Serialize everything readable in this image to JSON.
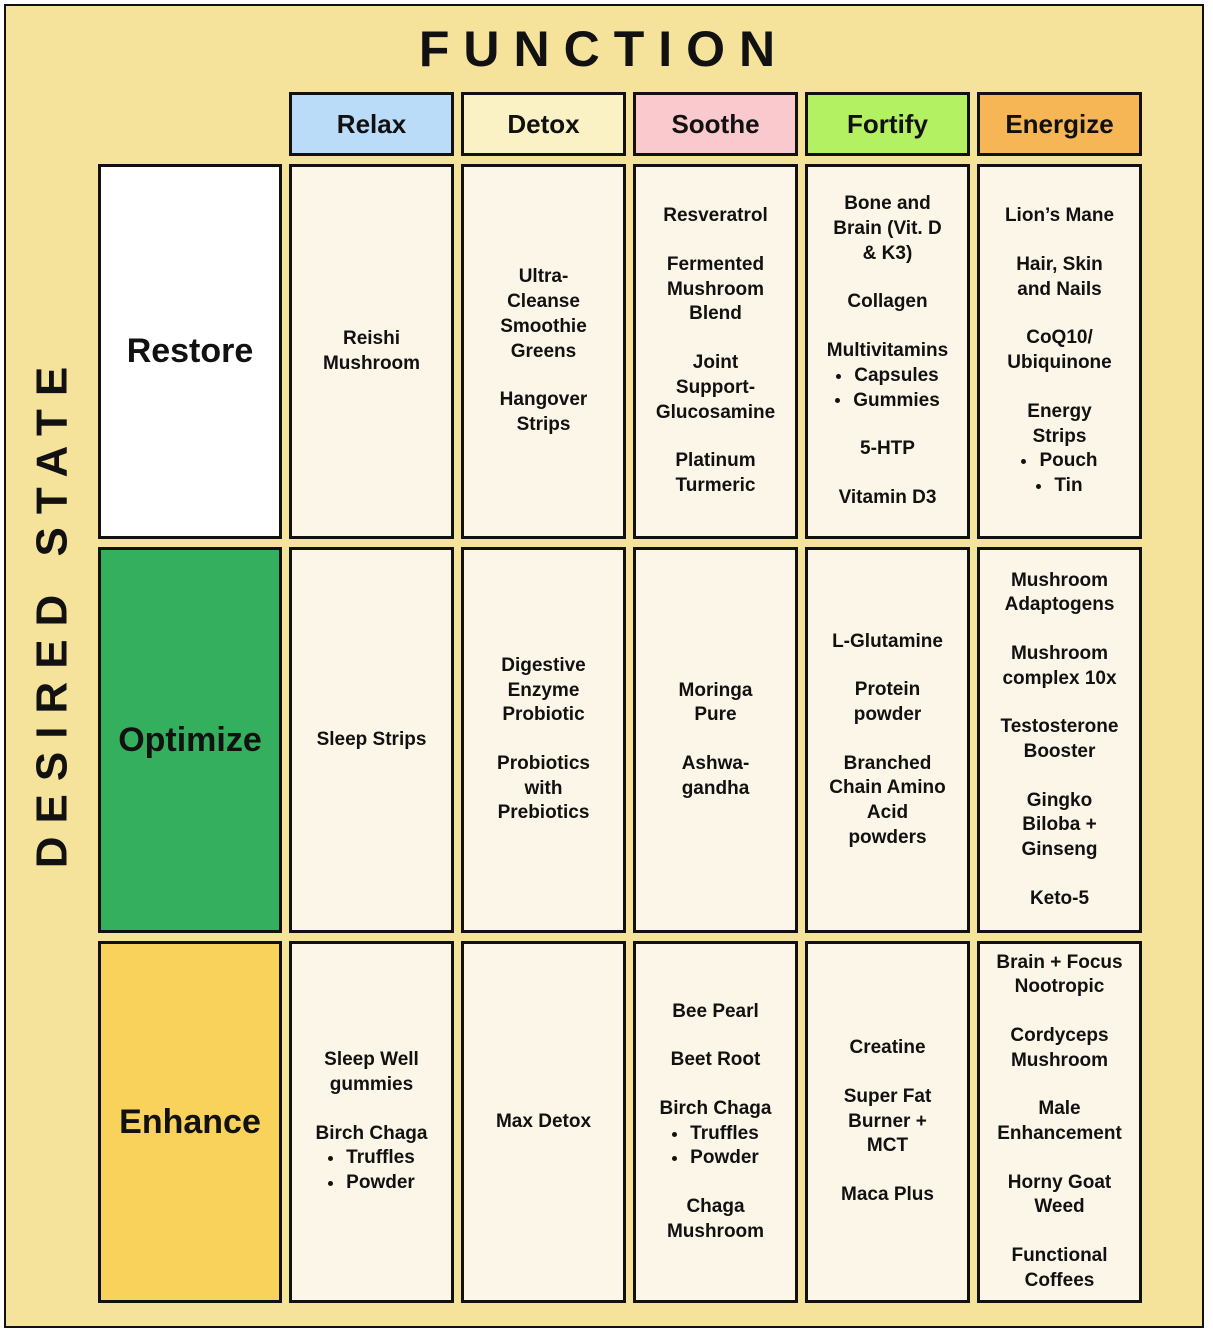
{
  "title": "FUNCTION",
  "side_label": "DESIRED STATE",
  "colors": {
    "canvas_bg": "#F5E29B",
    "cell_bg": "#FBF6E7",
    "border": "#111111"
  },
  "columns": [
    {
      "label": "Relax",
      "color": "#BBDCF8"
    },
    {
      "label": "Detox",
      "color": "#FAF1C4"
    },
    {
      "label": "Soothe",
      "color": "#FAC9CE"
    },
    {
      "label": "Fortify",
      "color": "#B3F163"
    },
    {
      "label": "Energize",
      "color": "#F7B656"
    }
  ],
  "rows": [
    {
      "label": "Restore",
      "color": "#FFFFFF",
      "cells": [
        {
          "items": [
            {
              "text": "Reishi\nMushroom"
            }
          ]
        },
        {
          "items": [
            {
              "text": "Ultra-\nCleanse\nSmoothie\nGreens"
            },
            {
              "text": "Hangover\nStrips"
            }
          ]
        },
        {
          "items": [
            {
              "text": "Resveratrol"
            },
            {
              "text": "Fermented\nMushroom\nBlend"
            },
            {
              "text": "Joint\nSupport-\nGlucosamine"
            },
            {
              "text": "Platinum\nTurmeric"
            }
          ]
        },
        {
          "items": [
            {
              "text": "Bone and\nBrain (Vit. D\n& K3)"
            },
            {
              "text": "Collagen"
            },
            {
              "text": "Multivitamins",
              "bullets": [
                "Capsules",
                "Gummies"
              ]
            },
            {
              "text": "5-HTP"
            },
            {
              "text": "Vitamin D3"
            }
          ]
        },
        {
          "items": [
            {
              "text": "Lion’s Mane"
            },
            {
              "text": "Hair, Skin\nand Nails"
            },
            {
              "text": "CoQ10/\nUbiquinone"
            },
            {
              "text": "Energy\nStrips",
              "bullets": [
                "Pouch",
                "Tin"
              ]
            }
          ]
        }
      ]
    },
    {
      "label": "Optimize",
      "color": "#33AF5D",
      "cells": [
        {
          "items": [
            {
              "text": "Sleep Strips"
            }
          ]
        },
        {
          "items": [
            {
              "text": "Digestive\nEnzyme\nProbiotic"
            },
            {
              "text": "Probiotics\nwith\nPrebiotics"
            }
          ]
        },
        {
          "items": [
            {
              "text": "Moringa\nPure"
            },
            {
              "text": "Ashwa-\ngandha"
            }
          ]
        },
        {
          "items": [
            {
              "text": "L-Glutamine"
            },
            {
              "text": "Protein\npowder"
            },
            {
              "text": "Branched\nChain Amino\nAcid\npowders"
            }
          ]
        },
        {
          "items": [
            {
              "text": "Mushroom\nAdaptogens"
            },
            {
              "text": "Mushroom\ncomplex 10x"
            },
            {
              "text": "Testosterone\nBooster"
            },
            {
              "text": "Gingko\nBiloba +\nGinseng"
            },
            {
              "text": "Keto-5"
            }
          ]
        }
      ]
    },
    {
      "label": "Enhance",
      "color": "#F9D25C",
      "cells": [
        {
          "items": [
            {
              "text": "Sleep Well\ngummies"
            },
            {
              "text": "Birch Chaga",
              "bullets": [
                "Truffles",
                "Powder"
              ]
            }
          ]
        },
        {
          "items": [
            {
              "text": "Max Detox"
            }
          ]
        },
        {
          "items": [
            {
              "text": "Bee Pearl"
            },
            {
              "text": "Beet Root"
            },
            {
              "text": "Birch Chaga",
              "bullets": [
                "Truffles",
                "Powder"
              ]
            },
            {
              "text": "Chaga\nMushroom"
            }
          ]
        },
        {
          "items": [
            {
              "text": "Creatine"
            },
            {
              "text": "Super Fat\nBurner +\nMCT"
            },
            {
              "text": "Maca Plus"
            }
          ]
        },
        {
          "items": [
            {
              "text": "Brain + Focus\nNootropic"
            },
            {
              "text": "Cordyceps\nMushroom"
            },
            {
              "text": "Male\nEnhancement"
            },
            {
              "text": "Horny Goat\nWeed"
            },
            {
              "text": "Functional\nCoffees"
            }
          ]
        }
      ]
    }
  ]
}
